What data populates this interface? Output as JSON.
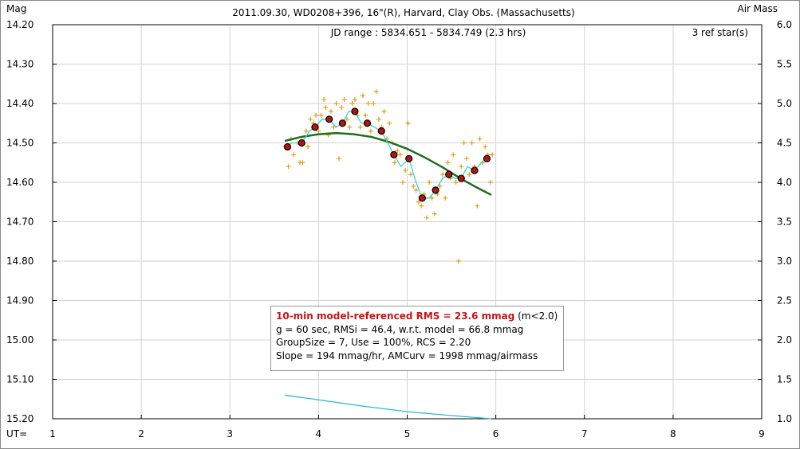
{
  "chart_data": {
    "type": "scatter",
    "title": "2011.09.30, WD0208+396, 16\"(R), Harvard, Clay Obs. (Massachusetts)",
    "ylabel_left": "Mag",
    "ylabel_right": "Air Mass",
    "xlabel": "UT=",
    "jd_range": "JD range : 5834.651 - 5834.749 (2.3 hrs)",
    "ref_stars": "3 ref star(s)",
    "xlim": [
      1,
      9
    ],
    "ylim": [
      14.2,
      15.2
    ],
    "y2lim": [
      1.0,
      6.0
    ],
    "x_ticks": [
      "1",
      "2",
      "3",
      "4",
      "5",
      "6",
      "7",
      "8",
      "9"
    ],
    "y_ticks": [
      "14.20",
      "14.30",
      "14.40",
      "14.50",
      "14.60",
      "14.70",
      "14.80",
      "14.90",
      "15.00",
      "15.10",
      "15.20"
    ],
    "y2_ticks": [
      "6.0",
      "5.5",
      "5.0",
      "4.5",
      "4.0",
      "3.5",
      "3.0",
      "2.5",
      "2.0",
      "1.5",
      "1.0"
    ],
    "grid": true,
    "colors": {
      "raw": "#e3a019",
      "binned_fill": "#b41414",
      "spline": "#33d7d7",
      "model": "#1d6f1d",
      "airmass": "#2ab8d6"
    },
    "raw_points": [
      [
        3.62,
        14.51
      ],
      [
        3.66,
        14.56
      ],
      [
        3.69,
        14.49
      ],
      [
        3.72,
        14.53
      ],
      [
        3.76,
        14.5
      ],
      [
        3.79,
        14.55
      ],
      [
        3.82,
        14.55
      ],
      [
        3.86,
        14.47
      ],
      [
        3.88,
        14.51
      ],
      [
        3.91,
        14.44
      ],
      [
        3.94,
        14.45
      ],
      [
        3.97,
        14.43
      ],
      [
        4.0,
        14.47
      ],
      [
        4.03,
        14.43
      ],
      [
        4.06,
        14.39
      ],
      [
        4.08,
        14.41
      ],
      [
        4.11,
        14.48
      ],
      [
        4.14,
        14.42
      ],
      [
        4.17,
        14.46
      ],
      [
        4.2,
        14.4
      ],
      [
        4.23,
        14.54
      ],
      [
        4.26,
        14.41
      ],
      [
        4.29,
        14.39
      ],
      [
        4.32,
        14.44
      ],
      [
        4.35,
        14.46
      ],
      [
        4.38,
        14.4
      ],
      [
        4.41,
        14.39
      ],
      [
        4.44,
        14.43
      ],
      [
        4.47,
        14.46
      ],
      [
        4.5,
        14.38
      ],
      [
        4.53,
        14.43
      ],
      [
        4.56,
        14.4
      ],
      [
        4.59,
        14.47
      ],
      [
        4.62,
        14.4
      ],
      [
        4.65,
        14.37
      ],
      [
        4.68,
        14.44
      ],
      [
        4.71,
        14.46
      ],
      [
        4.74,
        14.42
      ],
      [
        4.77,
        14.49
      ],
      [
        4.8,
        14.45
      ],
      [
        4.83,
        14.5
      ],
      [
        4.86,
        14.55
      ],
      [
        4.89,
        14.52
      ],
      [
        4.92,
        14.53
      ],
      [
        4.95,
        14.6
      ],
      [
        4.98,
        14.57
      ],
      [
        5.01,
        14.45
      ],
      [
        5.04,
        14.58
      ],
      [
        5.07,
        14.61
      ],
      [
        5.1,
        14.62
      ],
      [
        5.13,
        14.65
      ],
      [
        5.16,
        14.66
      ],
      [
        5.19,
        14.63
      ],
      [
        5.22,
        14.69
      ],
      [
        5.25,
        14.6
      ],
      [
        5.28,
        14.64
      ],
      [
        5.31,
        14.68
      ],
      [
        5.34,
        14.63
      ],
      [
        5.37,
        14.61
      ],
      [
        5.4,
        14.58
      ],
      [
        5.43,
        14.64
      ],
      [
        5.46,
        14.55
      ],
      [
        5.49,
        14.59
      ],
      [
        5.52,
        14.53
      ],
      [
        5.55,
        14.6
      ],
      [
        5.58,
        14.8
      ],
      [
        5.61,
        14.56
      ],
      [
        5.64,
        14.5
      ],
      [
        5.67,
        14.54
      ],
      [
        5.7,
        14.58
      ],
      [
        5.73,
        14.5
      ],
      [
        5.76,
        14.56
      ],
      [
        5.79,
        14.66
      ],
      [
        5.82,
        14.49
      ],
      [
        5.85,
        14.55
      ],
      [
        5.88,
        14.51
      ],
      [
        5.91,
        14.53
      ],
      [
        5.94,
        14.6
      ],
      [
        5.96,
        14.53
      ]
    ],
    "binned_points": [
      [
        3.65,
        14.51
      ],
      [
        3.81,
        14.5
      ],
      [
        3.96,
        14.46
      ],
      [
        4.12,
        14.44
      ],
      [
        4.27,
        14.45
      ],
      [
        4.41,
        14.42
      ],
      [
        4.55,
        14.45
      ],
      [
        4.71,
        14.47
      ],
      [
        4.85,
        14.53
      ],
      [
        5.02,
        14.54
      ],
      [
        5.17,
        14.64
      ],
      [
        5.32,
        14.62
      ],
      [
        5.47,
        14.58
      ],
      [
        5.61,
        14.59
      ],
      [
        5.76,
        14.57
      ],
      [
        5.9,
        14.54
      ]
    ],
    "spline": [
      [
        3.62,
        14.51
      ],
      [
        3.7,
        14.5
      ],
      [
        3.81,
        14.5
      ],
      [
        3.9,
        14.47
      ],
      [
        3.96,
        14.46
      ],
      [
        4.04,
        14.44
      ],
      [
        4.12,
        14.44
      ],
      [
        4.2,
        14.46
      ],
      [
        4.27,
        14.45
      ],
      [
        4.34,
        14.42
      ],
      [
        4.41,
        14.42
      ],
      [
        4.48,
        14.45
      ],
      [
        4.55,
        14.45
      ],
      [
        4.63,
        14.46
      ],
      [
        4.71,
        14.47
      ],
      [
        4.78,
        14.5
      ],
      [
        4.85,
        14.53
      ],
      [
        4.93,
        14.56
      ],
      [
        5.02,
        14.54
      ],
      [
        5.1,
        14.6
      ],
      [
        5.17,
        14.64
      ],
      [
        5.25,
        14.64
      ],
      [
        5.32,
        14.62
      ],
      [
        5.4,
        14.59
      ],
      [
        5.47,
        14.58
      ],
      [
        5.54,
        14.59
      ],
      [
        5.61,
        14.59
      ],
      [
        5.68,
        14.56
      ],
      [
        5.76,
        14.57
      ],
      [
        5.84,
        14.55
      ],
      [
        5.9,
        14.54
      ]
    ],
    "model_curve": [
      [
        3.62,
        14.495
      ],
      [
        3.8,
        14.485
      ],
      [
        4.0,
        14.478
      ],
      [
        4.2,
        14.475
      ],
      [
        4.4,
        14.478
      ],
      [
        4.6,
        14.485
      ],
      [
        4.8,
        14.498
      ],
      [
        5.0,
        14.515
      ],
      [
        5.2,
        14.537
      ],
      [
        5.4,
        14.562
      ],
      [
        5.6,
        14.59
      ],
      [
        5.8,
        14.615
      ],
      [
        5.95,
        14.632
      ]
    ],
    "airmass_curve": [
      [
        3.62,
        1.3
      ],
      [
        4.0,
        1.24
      ],
      [
        4.5,
        1.16
      ],
      [
        5.0,
        1.09
      ],
      [
        5.5,
        1.04
      ],
      [
        5.95,
        1.0
      ]
    ],
    "stats": {
      "headline": "10-min model-referenced RMS = 23.6 mmag",
      "headline_suffix": " (m<2.0)",
      "line2": "g = 60 sec, RMSi = 46.4, w.r.t. model = 66.8 mmag",
      "line3": "GroupSize = 7, Use = 100%, RCS = 2.20",
      "line4": "Slope = 194 mmag/hr, AMCurv = 1998 mmag/airmass"
    }
  }
}
